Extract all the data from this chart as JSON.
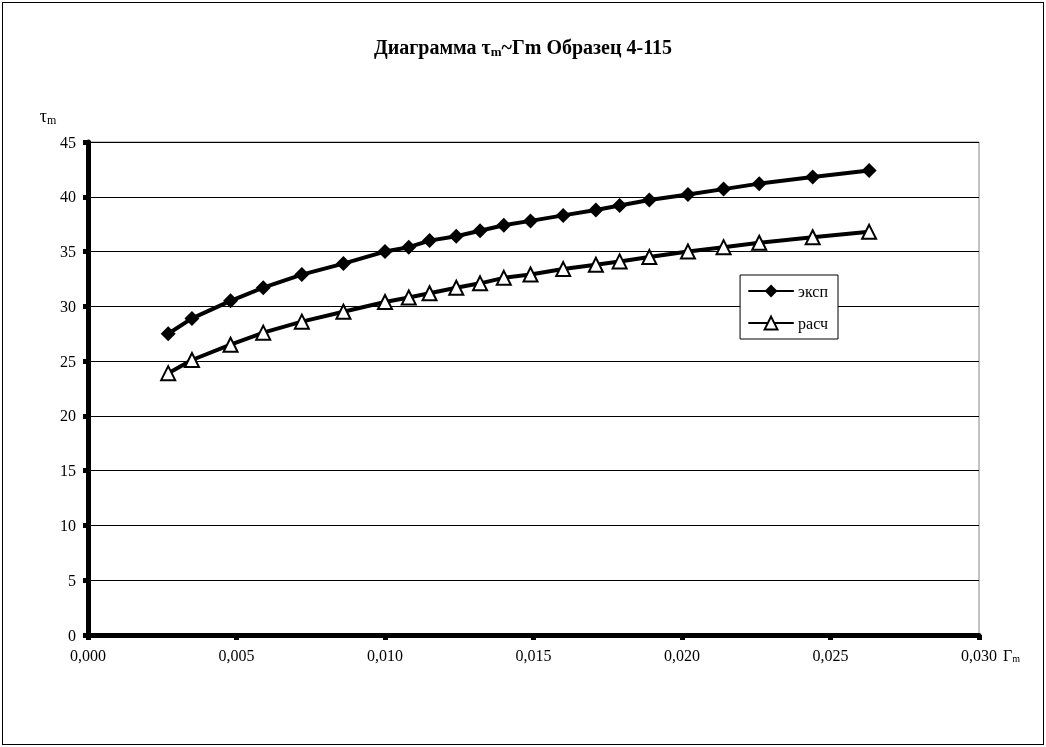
{
  "chart_data": {
    "type": "line",
    "title": "Диаграмма τ$_{m}$~Гm Образец 4-115",
    "xlabel": "Г$_{m}$",
    "ylabel": "τ$_{m}$",
    "xlim": [
      0,
      0.03
    ],
    "xticks": [
      {
        "value": 0,
        "label": "0,000"
      },
      {
        "value": 0.005,
        "label": "0,005"
      },
      {
        "value": 0.01,
        "label": "0,010"
      },
      {
        "value": 0.015,
        "label": "0,015"
      },
      {
        "value": 0.02,
        "label": "0,020"
      },
      {
        "value": 0.025,
        "label": "0,025"
      },
      {
        "value": 0.03,
        "label": "0,030"
      }
    ],
    "ylim": [
      0,
      45
    ],
    "yticks": [
      0,
      5,
      10,
      15,
      20,
      25,
      30,
      35,
      40,
      45
    ],
    "grid": "y",
    "legend": "right",
    "line_style": "solid",
    "x": [
      0.0027,
      0.0035,
      0.0048,
      0.0059,
      0.0072,
      0.0086,
      0.01,
      0.0108,
      0.0115,
      0.0124,
      0.0132,
      0.014,
      0.0149,
      0.016,
      0.0171,
      0.0179,
      0.0189,
      0.0202,
      0.0214,
      0.0226,
      0.0244,
      0.0263
    ],
    "series": [
      {
        "name": "эксп",
        "color": "#000000",
        "marker": "diamond",
        "values": [
          27.5,
          28.9,
          30.5,
          31.7,
          32.9,
          33.9,
          35.0,
          35.4,
          36.0,
          36.4,
          36.9,
          37.4,
          37.8,
          38.3,
          38.8,
          39.2,
          39.7,
          40.2,
          40.7,
          41.2,
          41.8,
          42.4
        ]
      },
      {
        "name": "расч",
        "color": "#000000",
        "marker": "triangle",
        "values": [
          23.9,
          25.1,
          26.5,
          27.6,
          28.6,
          29.5,
          30.4,
          30.8,
          31.2,
          31.7,
          32.1,
          32.6,
          32.9,
          33.4,
          33.8,
          34.1,
          34.5,
          35.0,
          35.4,
          35.8,
          36.3,
          36.8
        ]
      }
    ]
  }
}
